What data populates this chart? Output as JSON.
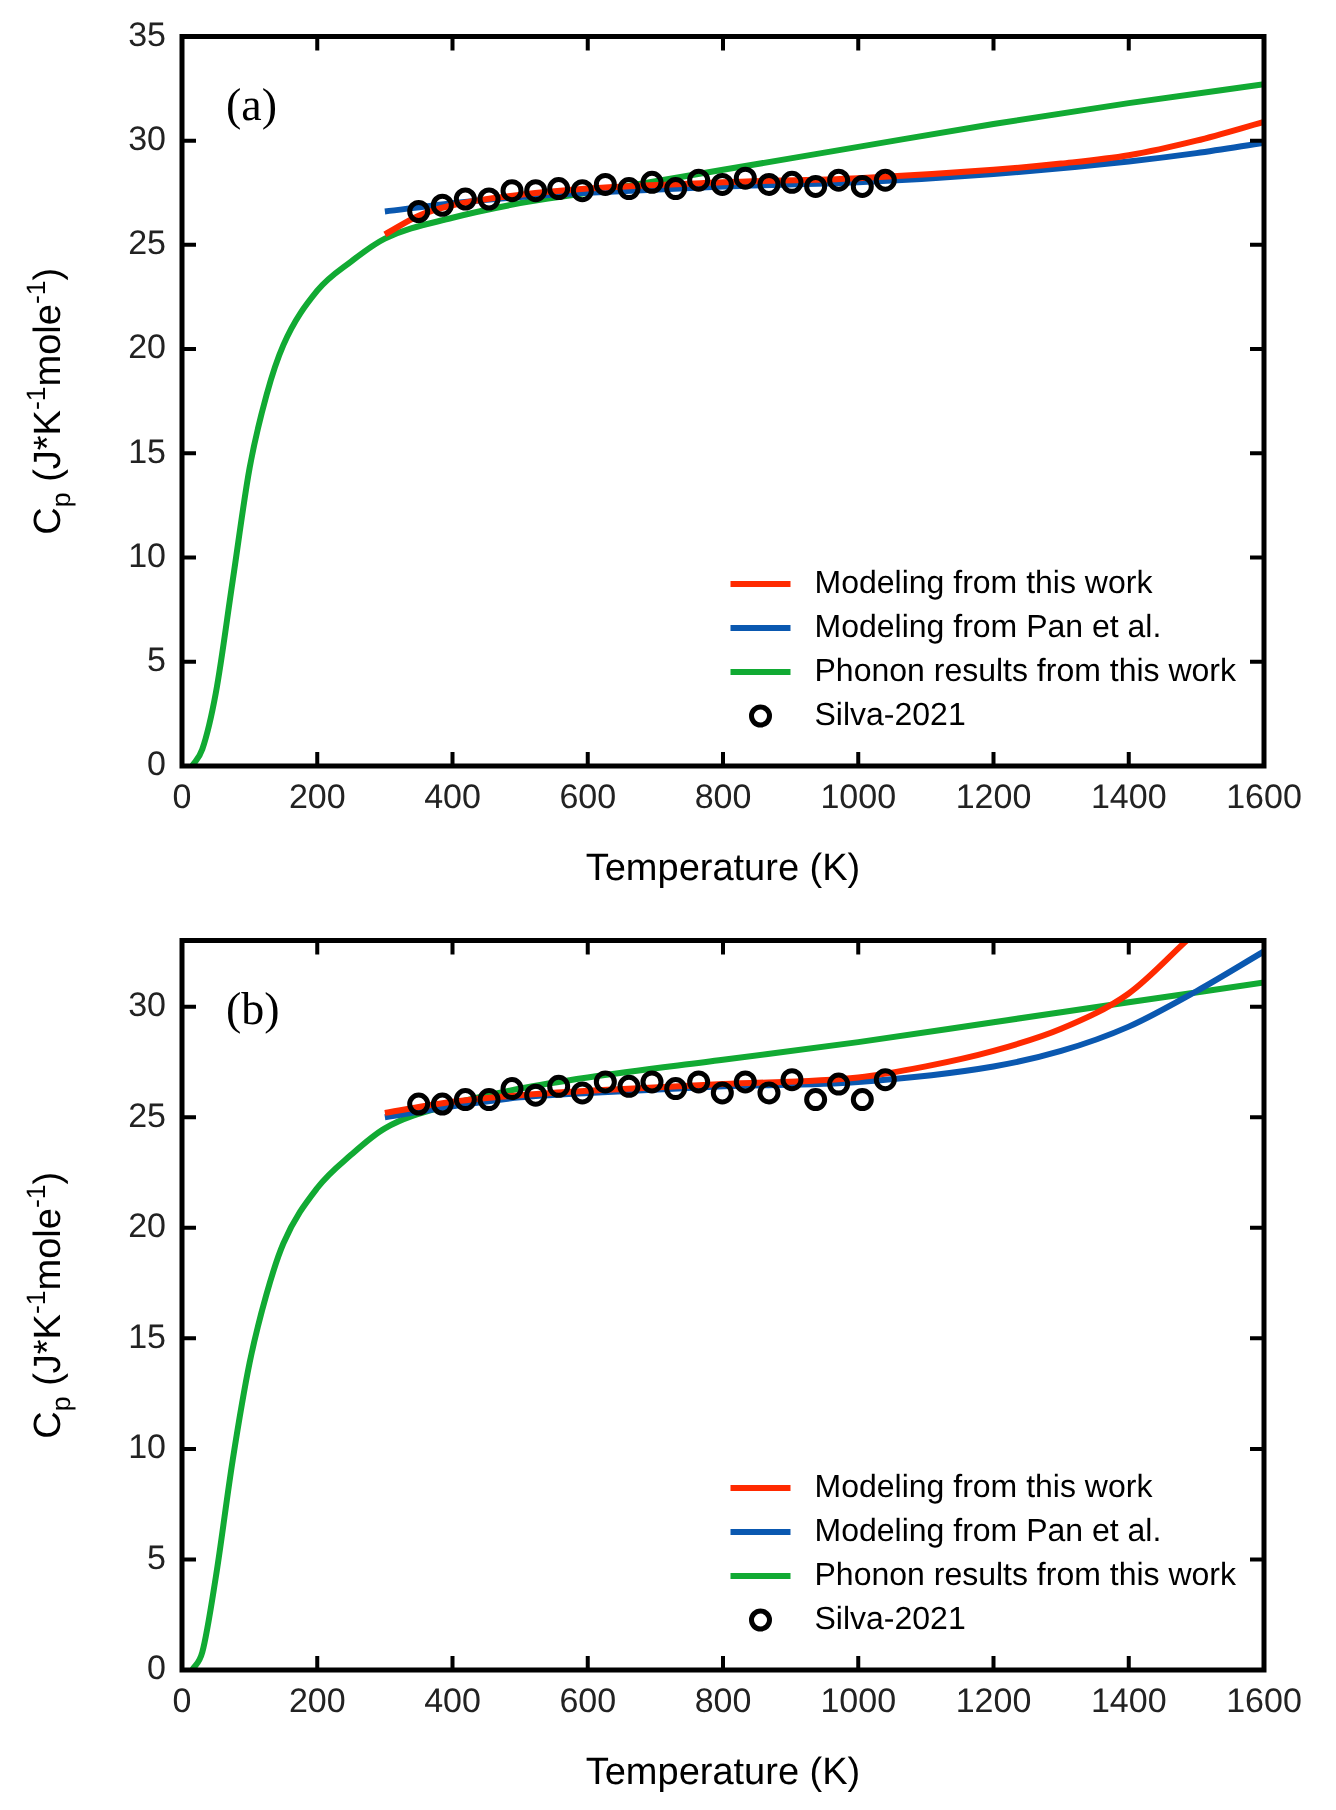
{
  "chart_data": [
    {
      "type": "line",
      "annotations": [
        "(a)"
      ],
      "xlabel": "Temperature (K)",
      "ylabel": "C$_{p}$ (J*K$^{-1}$mole$^{-1}$)",
      "xlim": [
        0,
        1600
      ],
      "xticks": [
        0,
        200,
        400,
        600,
        800,
        1000,
        1200,
        1400,
        1600
      ],
      "ylim": [
        0,
        35
      ],
      "yticks": [
        0,
        5,
        10,
        15,
        20,
        25,
        30,
        35
      ],
      "legend": "bottom right",
      "series": [
        {
          "name": "Modeling from this work",
          "color": "#ff2a00",
          "x": [
            300,
            350,
            400,
            500,
            600,
            800,
            1000,
            1200,
            1300,
            1400,
            1500,
            1600
          ],
          "values": [
            25.5,
            26.4,
            26.9,
            27.4,
            27.7,
            28.0,
            28.2,
            28.6,
            28.9,
            29.3,
            30.0,
            30.9
          ]
        },
        {
          "name": "Modeling from Pan et al.",
          "color": "#0a58b0",
          "x": [
            300,
            400,
            500,
            600,
            800,
            1000,
            1200,
            1400,
            1500,
            1600
          ],
          "values": [
            26.6,
            27.0,
            27.3,
            27.5,
            27.8,
            28.0,
            28.4,
            29.0,
            29.4,
            29.9
          ]
        },
        {
          "name": "Phonon results from this work",
          "color": "#11aa33",
          "x": [
            15,
            30,
            50,
            75,
            100,
            125,
            150,
            200,
            250,
            300,
            400,
            500,
            600,
            800,
            1000,
            1200,
            1400,
            1600
          ],
          "values": [
            0,
            0.8,
            3.5,
            8.9,
            14.3,
            17.8,
            20.2,
            22.8,
            24.2,
            25.3,
            26.3,
            27.0,
            27.5,
            28.6,
            29.7,
            30.8,
            31.8,
            32.7
          ]
        },
        {
          "name": "Silva-2021",
          "type": "scatter",
          "marker": "circle",
          "color": "#000000",
          "x": [
            350,
            385,
            419,
            454,
            488,
            523,
            557,
            592,
            626,
            661,
            695,
            730,
            764,
            799,
            833,
            868,
            902,
            937,
            971,
            1006,
            1040
          ],
          "values": [
            26.6,
            26.9,
            27.2,
            27.2,
            27.6,
            27.6,
            27.7,
            27.6,
            27.9,
            27.7,
            28.0,
            27.7,
            28.1,
            27.9,
            28.2,
            27.9,
            28.0,
            27.8,
            28.1,
            27.8,
            28.1
          ]
        }
      ]
    },
    {
      "type": "line",
      "annotations": [
        "(b)"
      ],
      "xlabel": "Temperature (K)",
      "ylabel": "C$_{p}$ (J*K$^{-1}$mole$^{-1}$)",
      "xlim": [
        0,
        1600
      ],
      "xticks": [
        0,
        200,
        400,
        600,
        800,
        1000,
        1200,
        1400,
        1600
      ],
      "ylim": [
        0,
        33
      ],
      "yticks": [
        0,
        5,
        10,
        15,
        20,
        25,
        30
      ],
      "legend": "bottom right",
      "series": [
        {
          "name": "Modeling from this work",
          "color": "#ff2a00",
          "x": [
            300,
            400,
            500,
            600,
            800,
            1000,
            1100,
            1200,
            1300,
            1400,
            1486
          ],
          "values": [
            25.2,
            25.7,
            26.0,
            26.2,
            26.5,
            26.8,
            27.3,
            28.0,
            29.0,
            30.6,
            33
          ]
        },
        {
          "name": "Modeling from Pan et al.",
          "color": "#0a58b0",
          "x": [
            300,
            400,
            500,
            600,
            800,
            1000,
            1200,
            1300,
            1400,
            1500,
            1600
          ],
          "values": [
            25.0,
            25.5,
            25.9,
            26.1,
            26.4,
            26.6,
            27.3,
            28.0,
            29.1,
            30.7,
            32.5
          ]
        },
        {
          "name": "Phonon results from this work",
          "color": "#11aa33",
          "x": [
            15,
            30,
            50,
            75,
            100,
            125,
            150,
            200,
            250,
            300,
            400,
            500,
            600,
            800,
            1000,
            1200,
            1400,
            1600
          ],
          "values": [
            0,
            0.8,
            4.2,
            9.5,
            13.9,
            17.0,
            19.3,
            21.8,
            23.3,
            24.5,
            25.6,
            26.3,
            26.8,
            27.6,
            28.4,
            29.3,
            30.2,
            31.1
          ]
        },
        {
          "name": "Silva-2021",
          "type": "scatter",
          "marker": "circle",
          "color": "#000000",
          "x": [
            350,
            385,
            419,
            454,
            488,
            523,
            557,
            592,
            626,
            661,
            695,
            730,
            764,
            799,
            833,
            868,
            902,
            937,
            971,
            1006,
            1040
          ],
          "values": [
            25.6,
            25.6,
            25.8,
            25.8,
            26.3,
            26.0,
            26.4,
            26.1,
            26.6,
            26.4,
            26.6,
            26.3,
            26.6,
            26.1,
            26.6,
            26.1,
            26.7,
            25.8,
            26.5,
            25.8,
            26.7
          ]
        }
      ]
    }
  ]
}
